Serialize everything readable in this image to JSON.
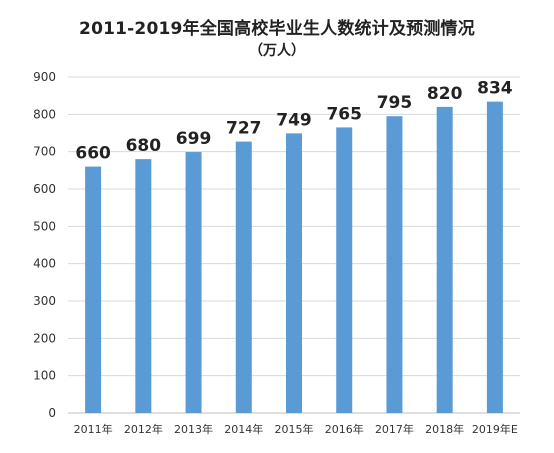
{
  "chart_data": {
    "type": "bar",
    "title": "2011-2019年全国高校毕业生人数统计及预测情况",
    "subtitle": "（万人）",
    "xlabel": "",
    "ylabel": "",
    "categories": [
      "2011年",
      "2012年",
      "2013年",
      "2014年",
      "2015年",
      "2016年",
      "2017年",
      "2018年",
      "2019年E"
    ],
    "values": [
      660,
      680,
      699,
      727,
      749,
      765,
      795,
      820,
      834
    ],
    "data_labels": [
      "660",
      "680",
      "699",
      "727",
      "749",
      "765",
      "795",
      "820",
      "834"
    ],
    "ylim": [
      0,
      900
    ],
    "yticks": [
      0,
      100,
      200,
      300,
      400,
      500,
      600,
      700,
      800,
      900
    ],
    "ytick_labels": [
      "0",
      "100",
      "200",
      "300",
      "400",
      "500",
      "600",
      "700",
      "800",
      "900"
    ],
    "grid": true,
    "legend": "none",
    "colors": {
      "bar": "#5b9bd5",
      "grid": "#d9d9d9",
      "axis": "#bfbfbf",
      "text": "#222222"
    }
  }
}
